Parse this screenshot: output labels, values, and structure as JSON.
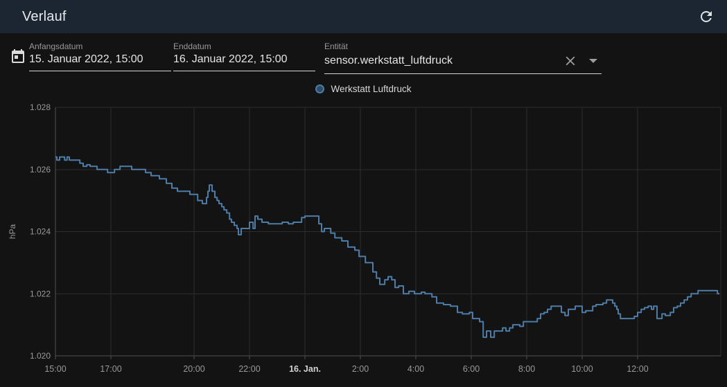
{
  "header": {
    "title": "Verlauf",
    "refresh_tooltip": "refresh"
  },
  "controls": {
    "start_date": {
      "label": "Anfangsdatum",
      "value": "15. Januar 2022, 15:00"
    },
    "end_date": {
      "label": "Enddatum",
      "value": "16. Januar 2022, 15:00"
    },
    "entity": {
      "label": "Entität",
      "value": "sensor.werkstatt_luftdruck"
    }
  },
  "legend": {
    "label": "Werkstatt Luftdruck",
    "color": "#4d7ca8"
  },
  "colors": {
    "page_bg": "#131313",
    "appbar_bg": "#1b2632",
    "grid": "#2d2d2d",
    "axis": "#505050",
    "tick_text": "#9a9a9a",
    "tick_text_bold": "#d3d3d3",
    "series": "#4d7ca8"
  },
  "chart_data": {
    "type": "line",
    "step": "after",
    "title": "",
    "xlabel": "",
    "ylabel": "hPa",
    "ylim": [
      1.02,
      1.028
    ],
    "x_unit": "hours since 15. Jan 2022 15:00",
    "xlim": [
      0,
      24
    ],
    "grid": true,
    "legend_position": "top-center",
    "yticks": [
      {
        "value": 1.028,
        "label": "1.028"
      },
      {
        "value": 1.026,
        "label": "1.026"
      },
      {
        "value": 1.024,
        "label": "1.024"
      },
      {
        "value": 1.022,
        "label": "1.022"
      },
      {
        "value": 1.02,
        "label": "1.020"
      }
    ],
    "xticks": [
      {
        "t": 0,
        "label": "15:00"
      },
      {
        "t": 2,
        "label": "17:00"
      },
      {
        "t": 5,
        "label": "20:00"
      },
      {
        "t": 7,
        "label": "22:00"
      },
      {
        "t": 9,
        "label": "16. Jan.",
        "bold": true
      },
      {
        "t": 11,
        "label": "2:00"
      },
      {
        "t": 13,
        "label": "4:00"
      },
      {
        "t": 15,
        "label": "6:00"
      },
      {
        "t": 17,
        "label": "8:00"
      },
      {
        "t": 19,
        "label": "10:00"
      },
      {
        "t": 21,
        "label": "12:00"
      },
      {
        "t": 24,
        "label": ""
      }
    ],
    "series": [
      {
        "name": "Werkstatt Luftdruck",
        "unit": "hPa",
        "color": "#4d7ca8",
        "points": [
          [
            0.0,
            1.0264
          ],
          [
            0.05,
            1.0263
          ],
          [
            0.15,
            1.0264
          ],
          [
            0.33,
            1.0263
          ],
          [
            0.42,
            1.0264
          ],
          [
            0.5,
            1.0263
          ],
          [
            0.88,
            1.0262
          ],
          [
            1.0,
            1.0261
          ],
          [
            1.13,
            1.02615
          ],
          [
            1.25,
            1.0261
          ],
          [
            1.5,
            1.026
          ],
          [
            1.88,
            1.0259
          ],
          [
            2.13,
            1.026
          ],
          [
            2.33,
            1.0261
          ],
          [
            2.75,
            1.026
          ],
          [
            3.25,
            1.0259
          ],
          [
            3.45,
            1.0258
          ],
          [
            3.75,
            1.0257
          ],
          [
            4.0,
            1.02555
          ],
          [
            4.2,
            1.0254
          ],
          [
            4.4,
            1.0253
          ],
          [
            4.85,
            1.0252
          ],
          [
            5.13,
            1.025
          ],
          [
            5.3,
            1.0249
          ],
          [
            5.45,
            1.0251
          ],
          [
            5.5,
            1.0253
          ],
          [
            5.55,
            1.0255
          ],
          [
            5.65,
            1.0253
          ],
          [
            5.75,
            1.0251
          ],
          [
            5.83,
            1.025
          ],
          [
            5.9,
            1.0249
          ],
          [
            6.0,
            1.0248
          ],
          [
            6.08,
            1.0247
          ],
          [
            6.18,
            1.0246
          ],
          [
            6.28,
            1.0244
          ],
          [
            6.35,
            1.0243
          ],
          [
            6.45,
            1.0242
          ],
          [
            6.55,
            1.0241
          ],
          [
            6.6,
            1.0239
          ],
          [
            6.7,
            1.0241
          ],
          [
            7.0,
            1.0243
          ],
          [
            7.13,
            1.0241
          ],
          [
            7.2,
            1.0245
          ],
          [
            7.3,
            1.0244
          ],
          [
            7.45,
            1.0243
          ],
          [
            7.68,
            1.02425
          ],
          [
            8.18,
            1.0243
          ],
          [
            8.4,
            1.02425
          ],
          [
            8.58,
            1.0243
          ],
          [
            8.88,
            1.02445
          ],
          [
            9.0,
            1.0245
          ],
          [
            9.5,
            1.02425
          ],
          [
            9.6,
            1.024
          ],
          [
            9.7,
            1.0241
          ],
          [
            9.93,
            1.02395
          ],
          [
            10.08,
            1.0238
          ],
          [
            10.33,
            1.0237
          ],
          [
            10.55,
            1.0235
          ],
          [
            10.8,
            1.0234
          ],
          [
            10.95,
            1.0232
          ],
          [
            11.18,
            1.023
          ],
          [
            11.45,
            1.0227
          ],
          [
            11.58,
            1.0225
          ],
          [
            11.7,
            1.0223
          ],
          [
            11.88,
            1.02245
          ],
          [
            12.0,
            1.02255
          ],
          [
            12.13,
            1.02245
          ],
          [
            12.25,
            1.0222
          ],
          [
            12.38,
            1.02225
          ],
          [
            12.55,
            1.022
          ],
          [
            12.75,
            1.02208
          ],
          [
            12.95,
            1.022
          ],
          [
            13.2,
            1.02205
          ],
          [
            13.33,
            1.022
          ],
          [
            13.58,
            1.0219
          ],
          [
            13.75,
            1.0217
          ],
          [
            14.0,
            1.02165
          ],
          [
            14.25,
            1.0216
          ],
          [
            14.5,
            1.0214
          ],
          [
            14.68,
            1.02135
          ],
          [
            14.93,
            1.0214
          ],
          [
            15.05,
            1.0212
          ],
          [
            15.3,
            1.0211
          ],
          [
            15.43,
            1.0206
          ],
          [
            15.55,
            1.0208
          ],
          [
            15.7,
            1.0206
          ],
          [
            15.83,
            1.0208
          ],
          [
            16.13,
            1.0209
          ],
          [
            16.25,
            1.0208
          ],
          [
            16.38,
            1.0209
          ],
          [
            16.5,
            1.021
          ],
          [
            16.75,
            1.02095
          ],
          [
            16.88,
            1.0211
          ],
          [
            17.38,
            1.0212
          ],
          [
            17.5,
            1.02135
          ],
          [
            17.63,
            1.0214
          ],
          [
            17.75,
            1.0215
          ],
          [
            17.88,
            1.0216
          ],
          [
            18.25,
            1.0214
          ],
          [
            18.38,
            1.0213
          ],
          [
            18.5,
            1.0215
          ],
          [
            18.75,
            1.0216
          ],
          [
            19.0,
            1.0214
          ],
          [
            19.13,
            1.02145
          ],
          [
            19.38,
            1.0216
          ],
          [
            19.5,
            1.02165
          ],
          [
            19.75,
            1.0217
          ],
          [
            19.88,
            1.0218
          ],
          [
            20.1,
            1.0217
          ],
          [
            20.18,
            1.0216
          ],
          [
            20.25,
            1.0215
          ],
          [
            20.3,
            1.02135
          ],
          [
            20.38,
            1.0212
          ],
          [
            20.88,
            1.02127
          ],
          [
            21.0,
            1.0214
          ],
          [
            21.13,
            1.0215
          ],
          [
            21.25,
            1.02155
          ],
          [
            21.38,
            1.0216
          ],
          [
            21.5,
            1.0215
          ],
          [
            21.58,
            1.0216
          ],
          [
            21.7,
            1.0212
          ],
          [
            21.88,
            1.02135
          ],
          [
            22.0,
            1.0213
          ],
          [
            22.18,
            1.0214
          ],
          [
            22.3,
            1.02155
          ],
          [
            22.43,
            1.0216
          ],
          [
            22.55,
            1.0217
          ],
          [
            22.68,
            1.0218
          ],
          [
            22.8,
            1.0219
          ],
          [
            22.93,
            1.022
          ],
          [
            23.18,
            1.0221
          ],
          [
            23.88,
            1.022
          ],
          [
            23.95,
            1.022
          ]
        ]
      }
    ]
  }
}
